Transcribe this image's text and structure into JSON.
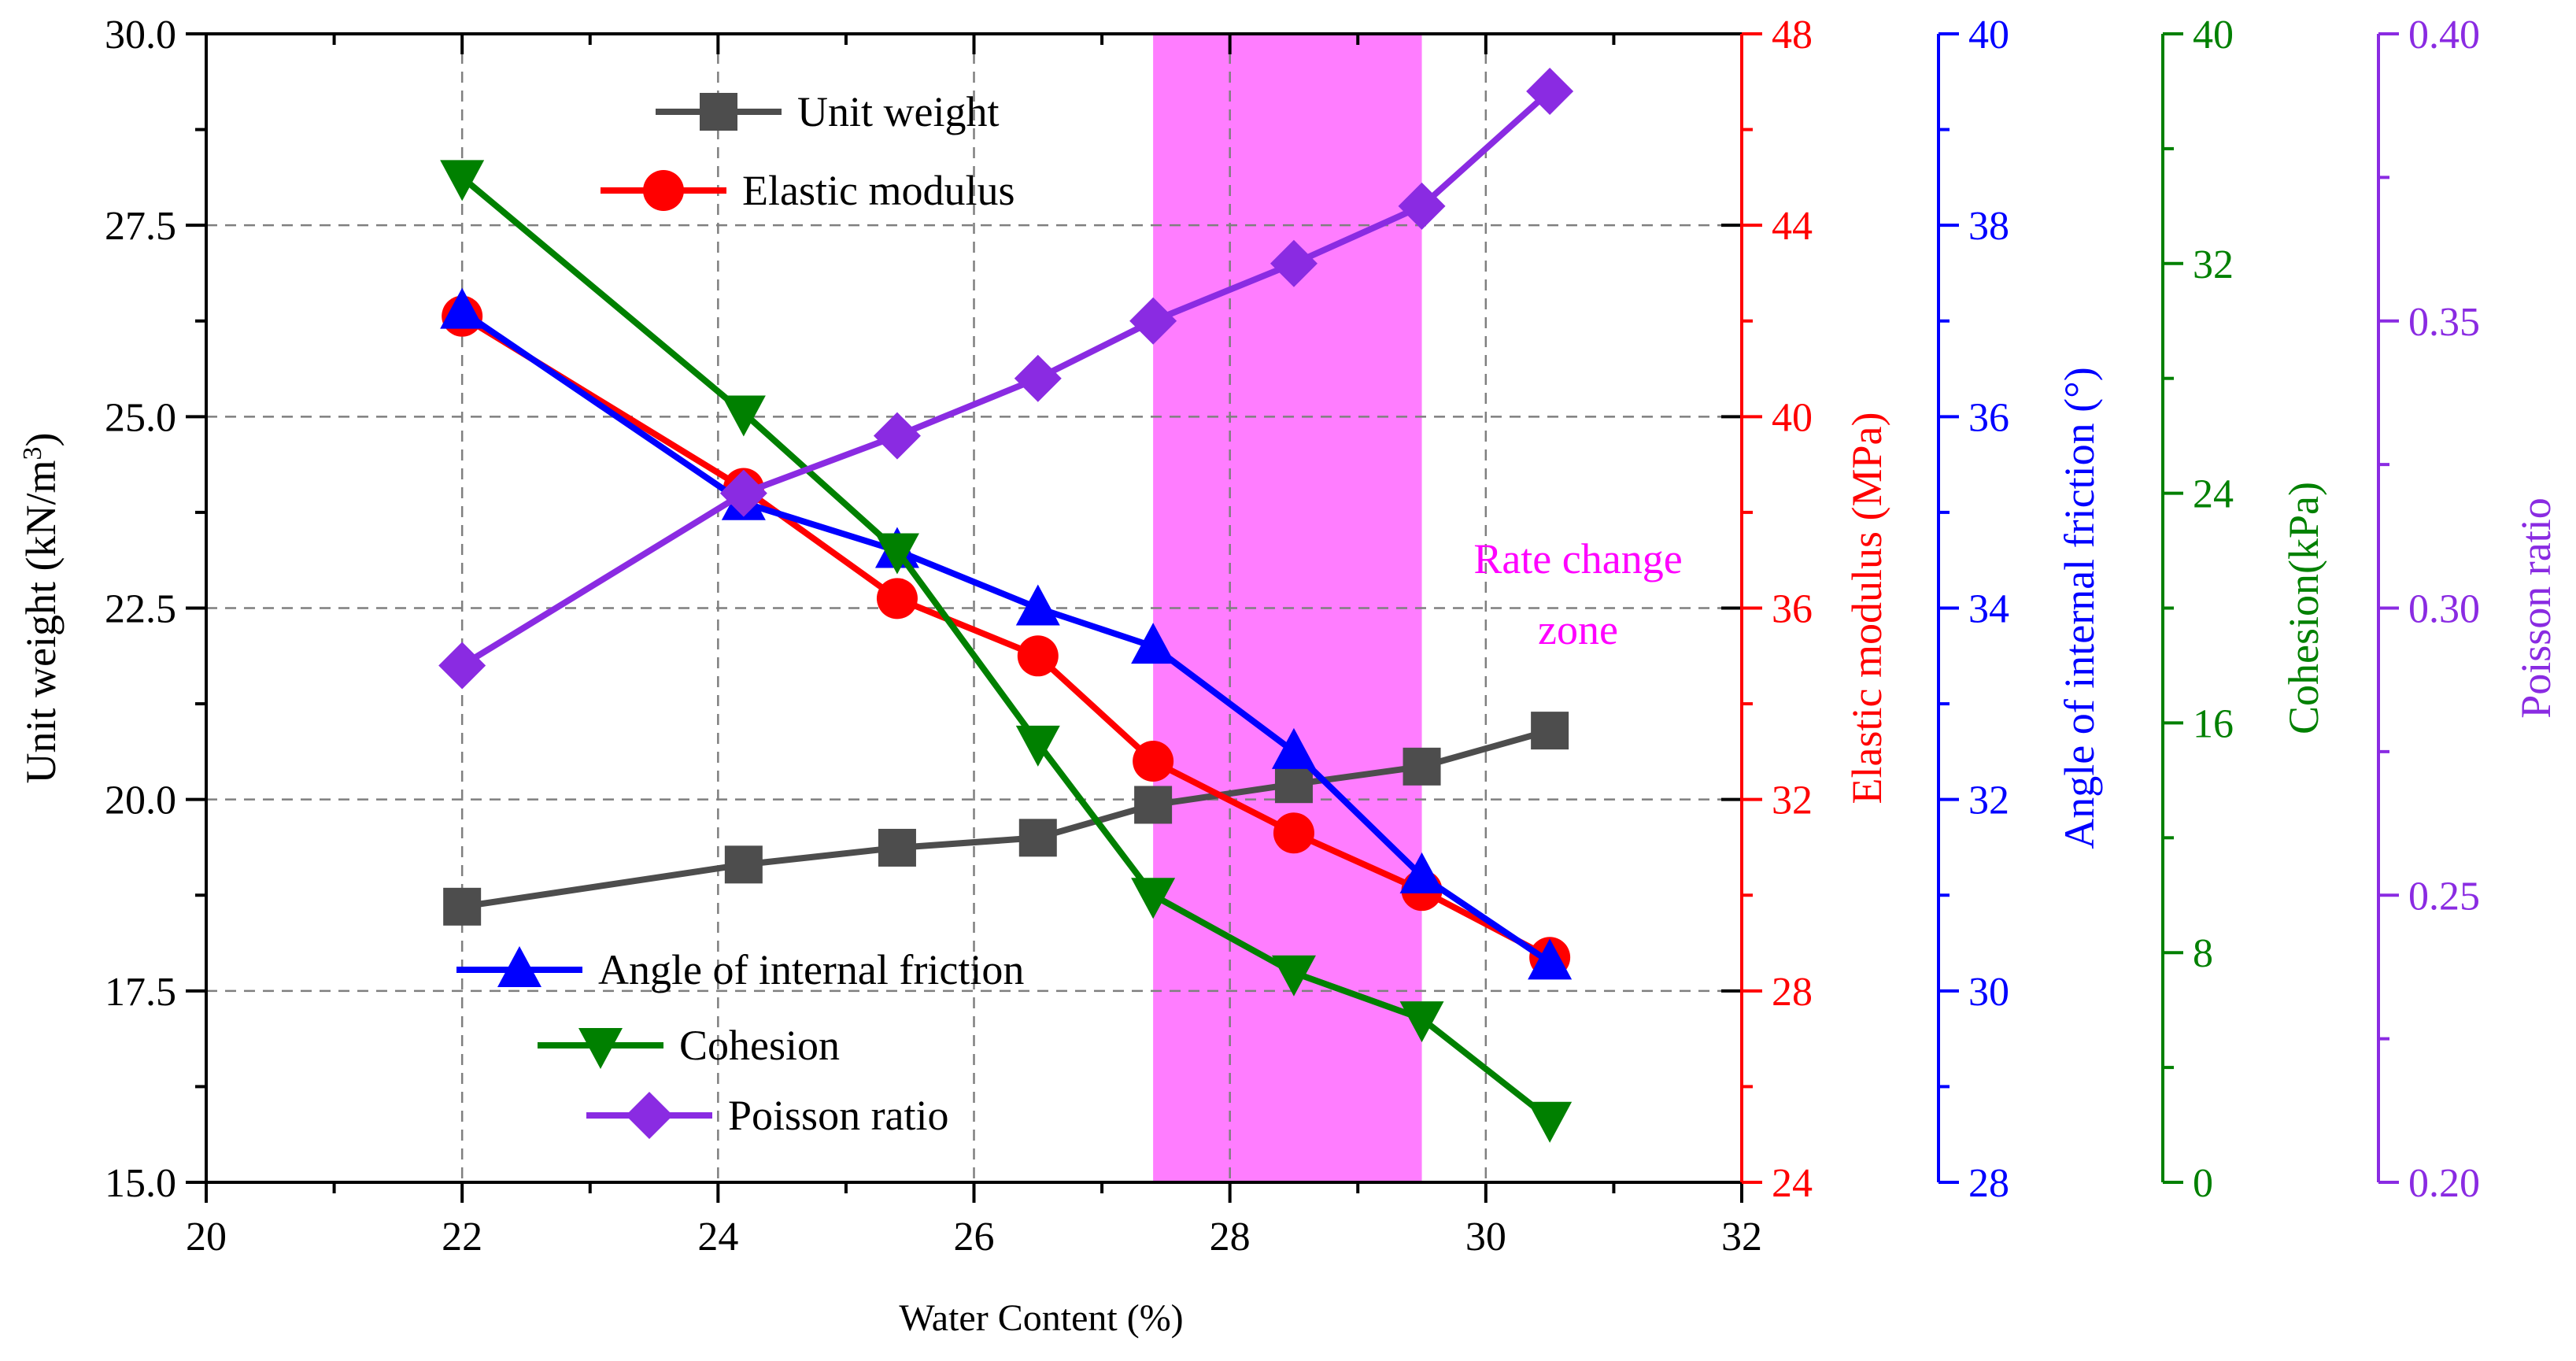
{
  "chart_data": {
    "type": "line",
    "xlabel": "Water Content (%)",
    "xlim": [
      20,
      32
    ],
    "x_ticks": [
      20,
      22,
      24,
      26,
      28,
      30,
      32
    ],
    "grid": true,
    "legend_upper": "top-center",
    "legend_lower": "bottom-left",
    "shaded_zone": {
      "x_range": [
        27.4,
        29.5
      ],
      "label_line1": "Rate change",
      "label_line2": "zone",
      "color": "#ff66ff"
    },
    "axes": [
      {
        "id": "unit",
        "label": "Unit weight (kN/m3)",
        "label_main": "Unit weight (kN/m",
        "label_sup": "3",
        "label_close": ")",
        "ylim": [
          15,
          30
        ],
        "ticks": [
          "15.0",
          "17.5",
          "20.0",
          "22.5",
          "25.0",
          "27.5",
          "30.0"
        ],
        "minor": 1,
        "color": "#000000",
        "side": "left"
      },
      {
        "id": "elastic",
        "label": "Elastic modulus (MPa)",
        "ylim": [
          24,
          48
        ],
        "ticks": [
          "24",
          "28",
          "32",
          "36",
          "40",
          "44",
          "48"
        ],
        "minor": 1,
        "color": "#ff0000",
        "side": "right"
      },
      {
        "id": "friction",
        "label": "Angle of internal friction (°)",
        "ylim": [
          28,
          40
        ],
        "ticks": [
          "28",
          "30",
          "32",
          "34",
          "36",
          "38",
          "40"
        ],
        "minor": 1,
        "color": "#0000ff",
        "side": "right"
      },
      {
        "id": "cohesion",
        "label": "Cohesion(kPa)",
        "ylim": [
          0,
          40
        ],
        "ticks": [
          "0",
          "8",
          "16",
          "24",
          "32",
          "40"
        ],
        "minor": 1,
        "color": "#008000",
        "side": "right"
      },
      {
        "id": "poisson",
        "label": "Poisson ratio",
        "ylim": [
          0.2,
          0.4
        ],
        "ticks": [
          "0.20",
          "0.25",
          "0.30",
          "0.35",
          "0.40"
        ],
        "minor": 1,
        "color": "#8a2be2",
        "side": "right"
      }
    ],
    "series": [
      {
        "name": "Unit weight",
        "axis": "unit",
        "marker": "square",
        "color": "#4d4d4d",
        "x": [
          22,
          24.2,
          25.4,
          26.5,
          27.4,
          28.5,
          29.5,
          30.5
        ],
        "y": [
          18.6,
          19.15,
          19.37,
          19.5,
          19.93,
          20.2,
          20.43,
          20.9
        ]
      },
      {
        "name": "Elastic modulus",
        "axis": "elastic",
        "marker": "circle",
        "color": "#ff0000",
        "x": [
          22,
          24.2,
          25.4,
          26.5,
          27.4,
          28.5,
          29.5,
          30.5
        ],
        "y": [
          42.1,
          38.5,
          36.2,
          35.0,
          32.8,
          31.3,
          30.1,
          28.7
        ]
      },
      {
        "name": "Angle of internal friction",
        "axis": "friction",
        "marker": "triangle-up",
        "color": "#0000ff",
        "x": [
          22,
          24.2,
          25.4,
          26.5,
          27.4,
          28.5,
          29.5,
          30.5
        ],
        "y": [
          37.1,
          35.1,
          34.6,
          34.0,
          33.6,
          32.5,
          31.2,
          30.3
        ]
      },
      {
        "name": "Cohesion",
        "axis": "cohesion",
        "marker": "triangle-down",
        "color": "#008000",
        "x": [
          22,
          24.2,
          25.4,
          26.5,
          27.4,
          28.5,
          29.5,
          30.5
        ],
        "y": [
          35.0,
          26.8,
          22.0,
          15.3,
          10.0,
          7.3,
          5.7,
          2.2
        ]
      },
      {
        "name": "Poisson ratio",
        "axis": "poisson",
        "marker": "diamond",
        "color": "#8a2be2",
        "x": [
          22,
          24.2,
          25.4,
          26.5,
          27.4,
          28.5,
          29.5,
          30.5
        ],
        "y": [
          0.29,
          0.32,
          0.33,
          0.34,
          0.35,
          0.36,
          0.37,
          0.39
        ]
      }
    ]
  }
}
